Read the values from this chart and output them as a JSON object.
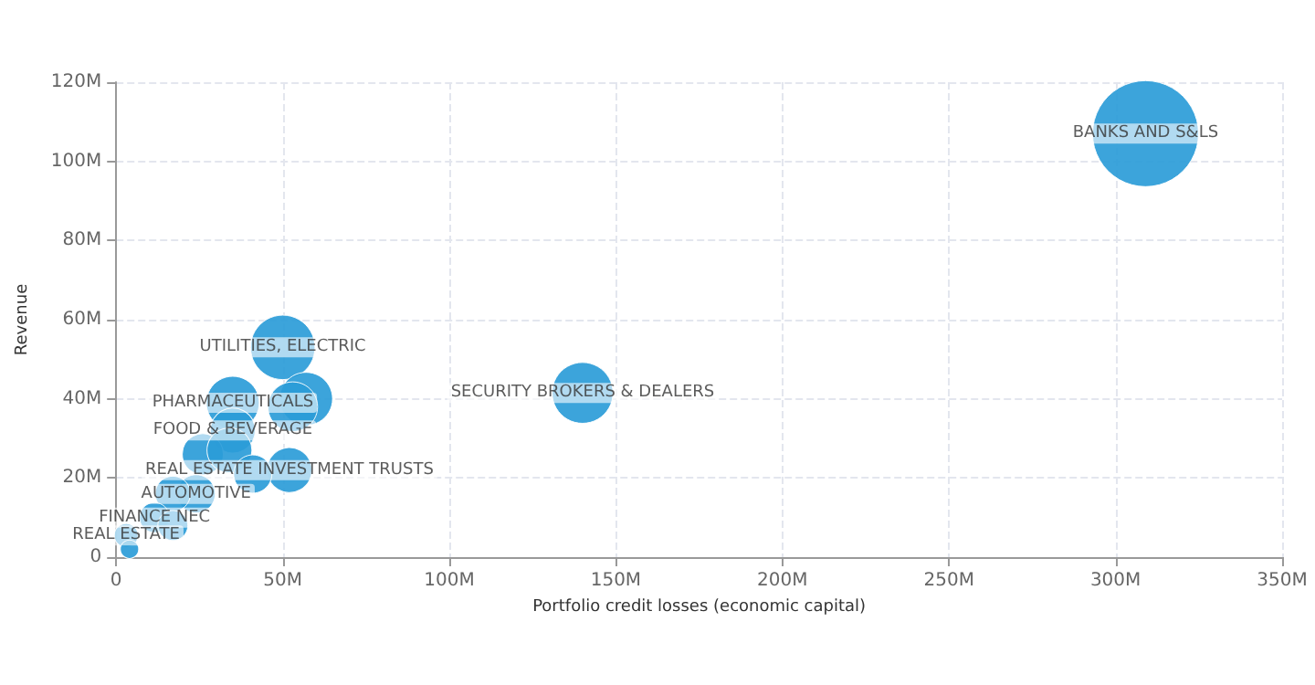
{
  "chart_data": {
    "type": "bubble",
    "xlabel": "Portfolio credit losses (economic capital)",
    "ylabel": "Revenue",
    "series": [
      {
        "color": "#2b9cd8",
        "x": [
          309,
          140,
          50,
          57,
          53,
          35,
          35,
          26,
          34,
          52,
          41,
          24,
          17,
          11.5,
          17,
          3,
          4
        ],
        "values": [
          107,
          41.5,
          53,
          40,
          38,
          39,
          32,
          26,
          27,
          22,
          21,
          16,
          16,
          10,
          8,
          5.5,
          2
        ],
        "sizes": [
          1,
          0.33,
          0.37,
          0.25,
          0.22,
          0.25,
          0.18,
          0.15,
          0.18,
          0.18,
          0.13,
          0.13,
          0.11,
          0.08,
          0.08,
          0.05,
          0.03
        ]
      }
    ],
    "annotations": [
      {
        "text": "BANKS AND S&LS",
        "x": 309,
        "y": 107
      },
      {
        "text": "SECURITY BROKERS & DEALERS",
        "x": 140,
        "y": 41.5
      },
      {
        "text": "UTILITIES, ELECTRIC",
        "x": 50,
        "y": 53
      },
      {
        "text": "PHARMACEUTICALS",
        "x": 35,
        "y": 39
      },
      {
        "text": "FOOD & BEVERAGE",
        "x": 35,
        "y": 32
      },
      {
        "text": "REAL ESTATE INVESTMENT TRUSTS",
        "x": 52,
        "y": 22
      },
      {
        "text": "AUTOMOTIVE",
        "x": 24,
        "y": 16
      },
      {
        "text": "FINANCE NEC",
        "x": 11.5,
        "y": 10
      },
      {
        "text": "REAL ESTATE",
        "x": 3,
        "y": 5.5
      }
    ],
    "xlim": [
      0,
      350
    ],
    "xticks": [
      {
        "value": 0,
        "label": "0"
      },
      {
        "value": 50,
        "label": "50M"
      },
      {
        "value": 100,
        "label": "100M"
      },
      {
        "value": 150,
        "label": "150M"
      },
      {
        "value": 200,
        "label": "200M"
      },
      {
        "value": 250,
        "label": "250M"
      },
      {
        "value": 300,
        "label": "300M"
      },
      {
        "value": 350,
        "label": "350M"
      }
    ],
    "ylim": [
      0,
      120
    ],
    "yticks": [
      {
        "value": 0,
        "label": "0"
      },
      {
        "value": 20,
        "label": "20M"
      },
      {
        "value": 40,
        "label": "40M"
      },
      {
        "value": 60,
        "label": "60M"
      },
      {
        "value": 80,
        "label": "80M"
      },
      {
        "value": 100,
        "label": "100M"
      },
      {
        "value": 120,
        "label": "120M"
      }
    ],
    "grid": true
  }
}
